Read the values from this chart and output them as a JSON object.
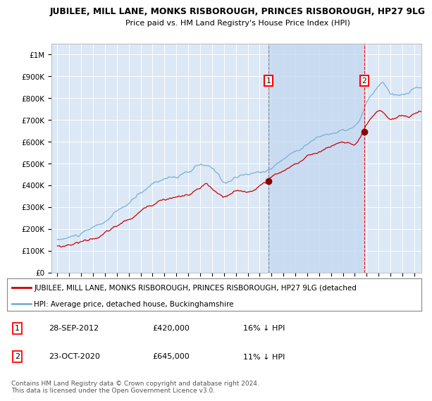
{
  "title": "JUBILEE, MILL LANE, MONKS RISBOROUGH, PRINCES RISBOROUGH, HP27 9LG",
  "subtitle": "Price paid vs. HM Land Registry's House Price Index (HPI)",
  "ylabel_ticks": [
    "£0",
    "£100K",
    "£200K",
    "£300K",
    "£400K",
    "£500K",
    "£600K",
    "£700K",
    "£800K",
    "£900K",
    "£1M"
  ],
  "ytick_vals": [
    0,
    100000,
    200000,
    300000,
    400000,
    500000,
    600000,
    700000,
    800000,
    900000,
    1000000
  ],
  "ylim": [
    0,
    1050000
  ],
  "xlim_start": 1994.5,
  "xlim_end": 2025.6,
  "background_color": "#dce8f5",
  "plot_bg_color": "#dce8f5",
  "red_line_color": "#cc0000",
  "blue_line_color": "#7ab0d4",
  "marker1_x": 2012.75,
  "marker1_y": 420000,
  "marker2_x": 2020.8,
  "marker2_y": 645000,
  "marker1_date": "28-SEP-2012",
  "marker1_price": "£420,000",
  "marker1_hpi": "16% ↓ HPI",
  "marker2_date": "23-OCT-2020",
  "marker2_price": "£645,000",
  "marker2_hpi": "11% ↓ HPI",
  "legend_line1": "JUBILEE, MILL LANE, MONKS RISBOROUGH, PRINCES RISBOROUGH, HP27 9LG (detached",
  "legend_line2": "HPI: Average price, detached house, Buckinghamshire",
  "footnote": "Contains HM Land Registry data © Crown copyright and database right 2024.\nThis data is licensed under the Open Government Licence v3.0."
}
